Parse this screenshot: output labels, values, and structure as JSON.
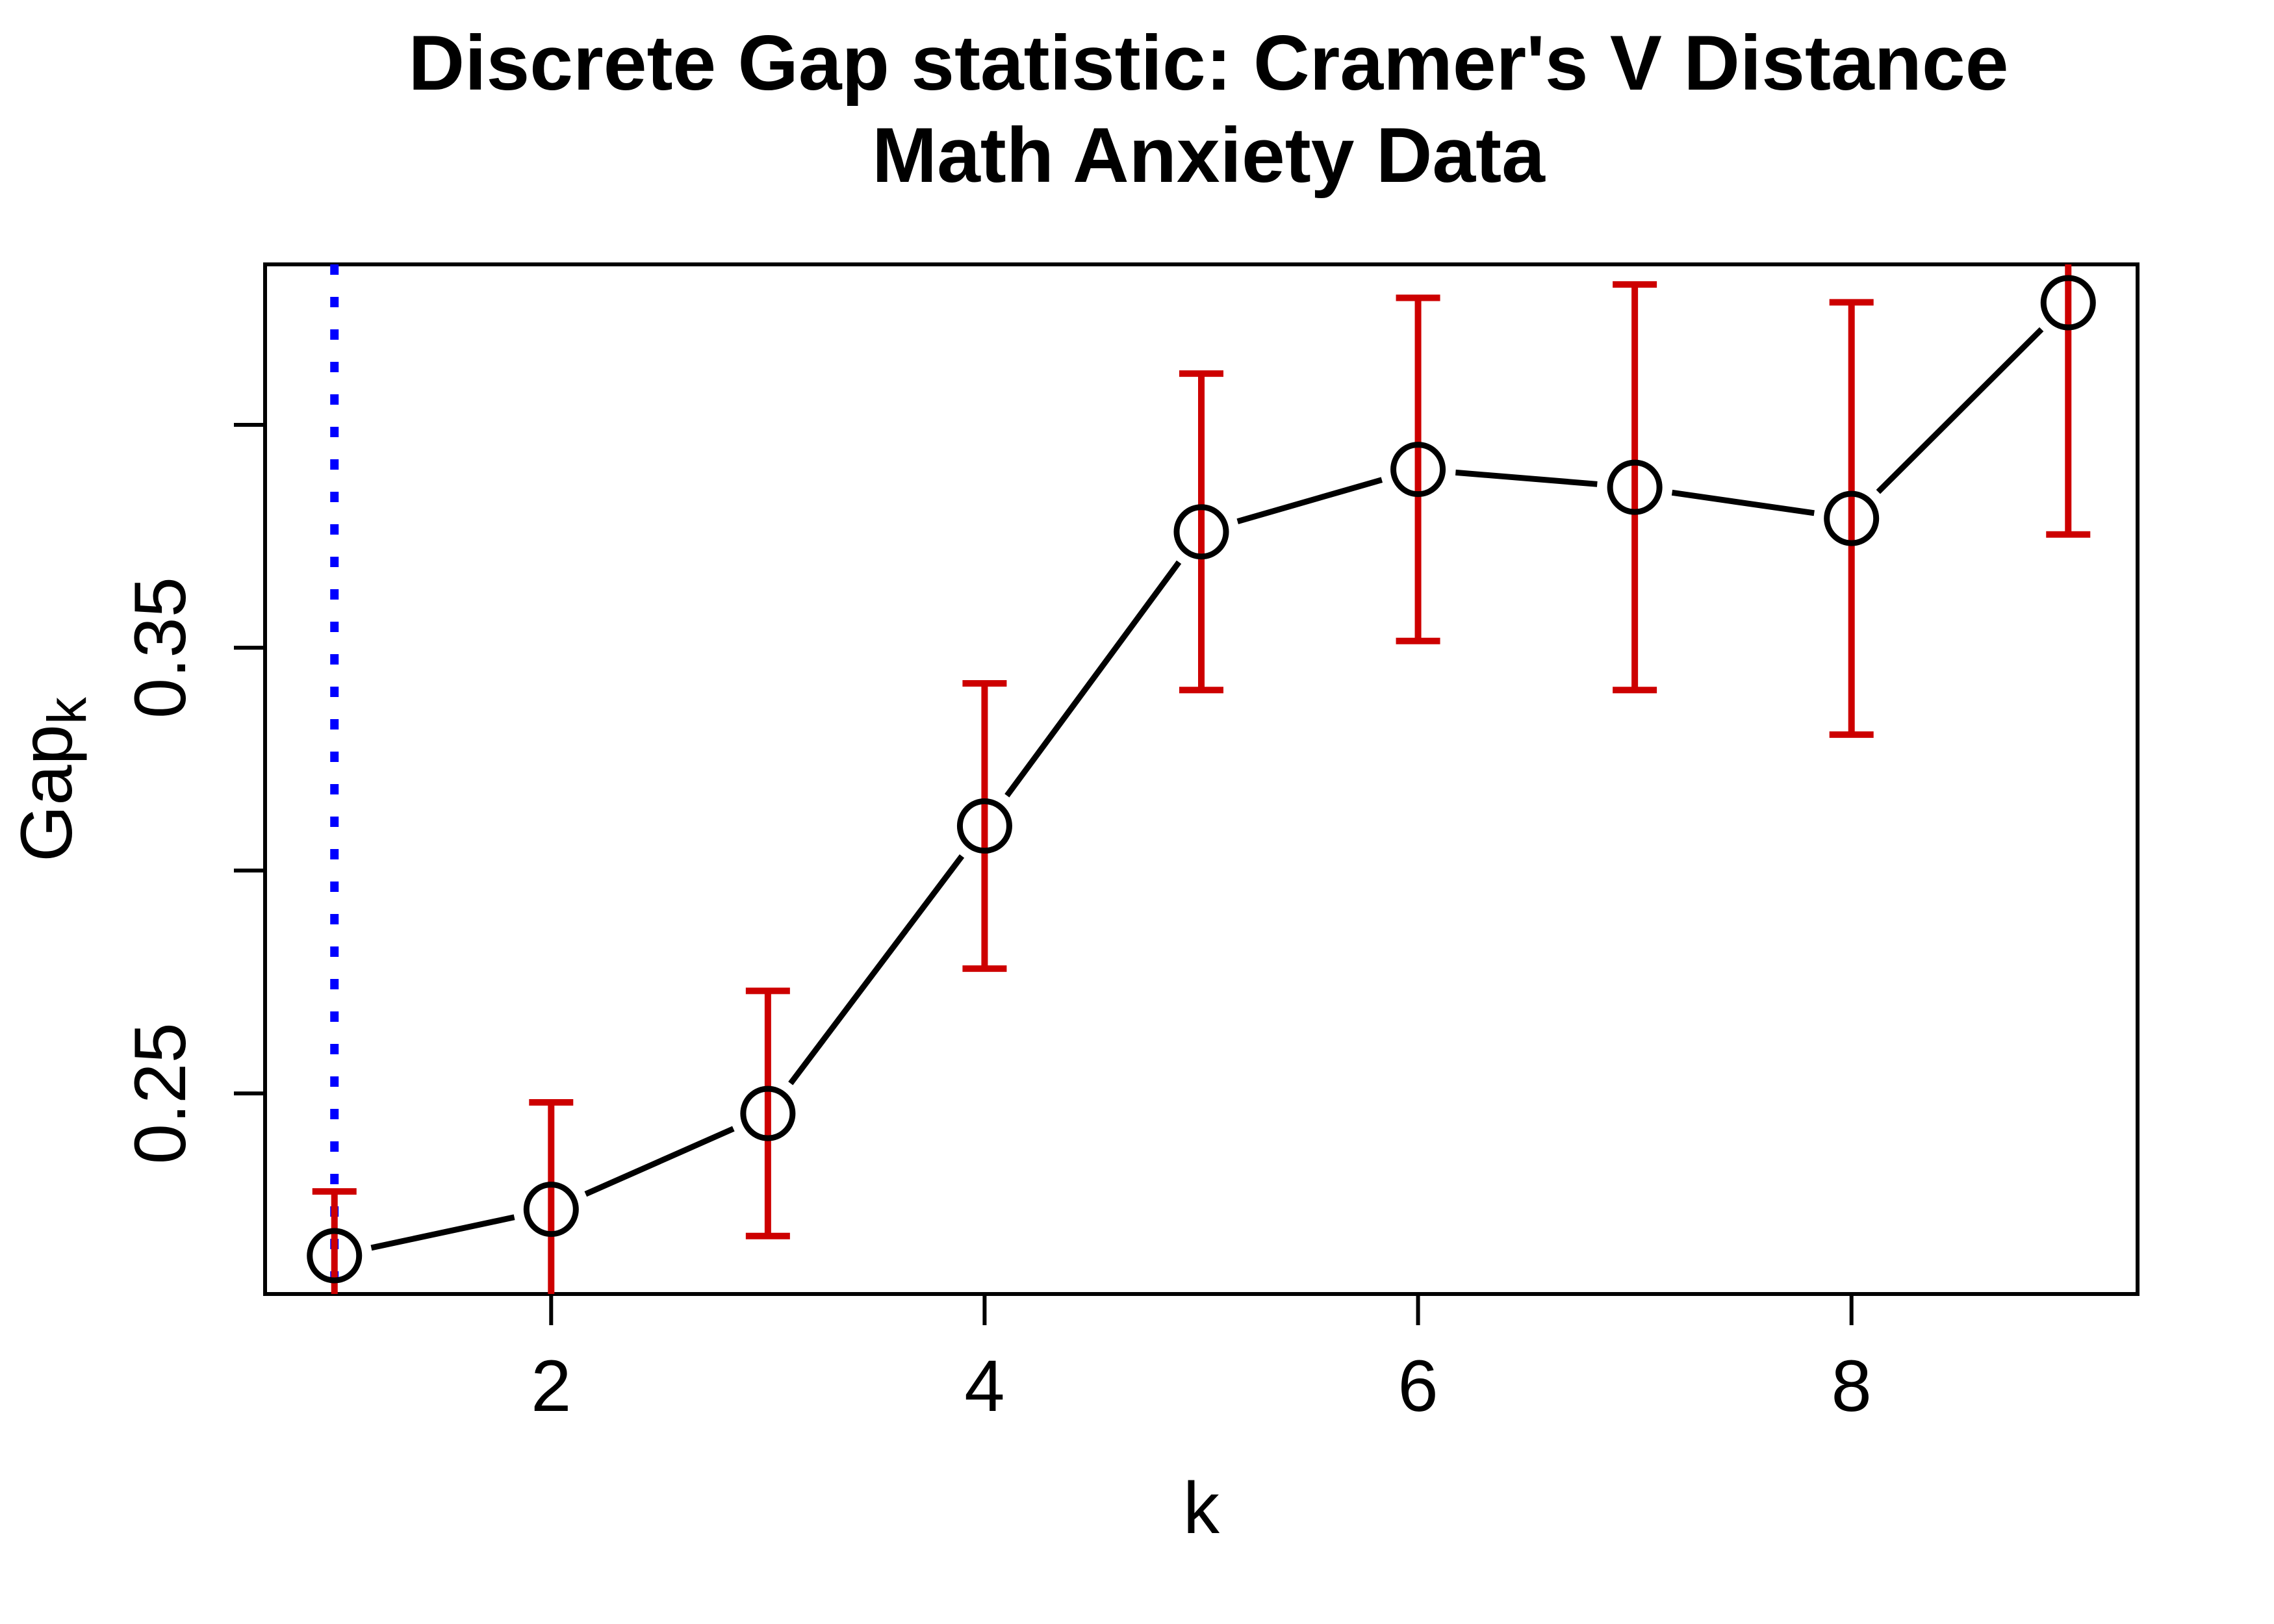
{
  "chart_data": {
    "type": "line",
    "title": "Discrete Gap statistic: Cramer's V Distance",
    "subtitle": "Math Anxiety Data",
    "xlabel": "k",
    "ylabel_main": "Gap",
    "ylabel_sub": "k",
    "x": [
      1,
      2,
      3,
      4,
      5,
      6,
      7,
      8,
      9
    ],
    "series": [
      {
        "name": "Gap statistic",
        "values": [
          0.2136,
          0.224,
          0.2455,
          0.31,
          0.376,
          0.39,
          0.386,
          0.379,
          0.4274
        ],
        "se": [
          0.0144,
          0.024,
          0.0275,
          0.032,
          0.0355,
          0.0385,
          0.0455,
          0.0485,
          0.052
        ]
      }
    ],
    "xticks": [
      2,
      4,
      6,
      8
    ],
    "xtick_labels": [
      "2",
      "4",
      "6",
      "8"
    ],
    "yticks": [
      0.25,
      0.3,
      0.35,
      0.4
    ],
    "ytick_labels": [
      "0.25",
      "",
      "0.35",
      ""
    ],
    "xlim": [
      0.68,
      9.32
    ],
    "ylim": [
      0.205,
      0.436
    ],
    "vline_x": 1,
    "grid": false,
    "legend": false,
    "marker": "open-circle",
    "colors": {
      "points_and_line": "#000000",
      "error_bars": "#CD0000",
      "reference_line": "#0000FF",
      "background": "#FFFFFF"
    }
  }
}
